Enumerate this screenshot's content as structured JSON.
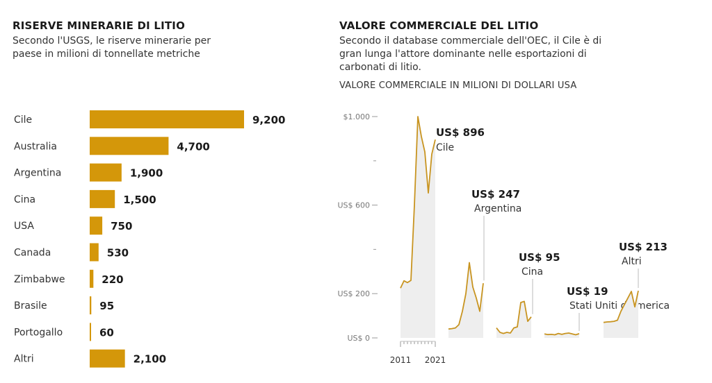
{
  "left": {
    "title": "RISERVE MINERARIE DI LITIO",
    "subtitle_line1": "Secondo l'USGS, le riserve minerarie per",
    "subtitle_line2": "paese in milioni di tonnellate metriche"
  },
  "right": {
    "title": "VALORE COMMERCIALE DEL LITIO",
    "subtitle_line1": "Secondo il database commerciale dell'OEC, il Cile è di",
    "subtitle_line2": "gran lunga l'attore dominante nelle esportazioni di",
    "subtitle_line3": "carbonati di litio.",
    "unit_label": "VALORE COMMERCIALE IN MILIONI DI DOLLARI USA"
  },
  "chart_data": [
    {
      "type": "bar",
      "orientation": "horizontal",
      "title": "RISERVE MINERARIE DI LITIO",
      "categories": [
        "Cile",
        "Australia",
        "Argentina",
        "Cina",
        "USA",
        "Canada",
        "Zimbabwe",
        "Brasile",
        "Portogallo",
        "Altri"
      ],
      "values": [
        9200,
        4700,
        1900,
        1500,
        750,
        530,
        220,
        95,
        60,
        2100
      ],
      "value_labels": [
        "9,200",
        "4,700",
        "1,900",
        "1,500",
        "750",
        "530",
        "220",
        "95",
        "60",
        "2,100"
      ],
      "xlim": [
        0,
        9200
      ],
      "color": "#d4970a"
    },
    {
      "type": "area",
      "layout": "small-multiples",
      "title": "VALORE COMMERCIALE DEL LITIO",
      "ylabel": "VALORE COMMERCIALE IN MILIONI DI DOLLARI USA",
      "ylim": [
        0,
        1000
      ],
      "y_ticks": [
        0,
        200,
        600,
        1000
      ],
      "y_tick_labels": [
        "US$ 0",
        "US$ 200",
        "US$ 600",
        "$1.000"
      ],
      "x_tick_labels": [
        "2011",
        "2021"
      ],
      "x": [
        2011,
        2012,
        2013,
        2014,
        2015,
        2016,
        2017,
        2018,
        2019,
        2020,
        2021
      ],
      "line_color": "#c89420",
      "fill_color": "#eeeeee",
      "series": [
        {
          "name": "Cile",
          "label": "US$ 896",
          "values": [
            225,
            258,
            250,
            260,
            600,
            1000,
            910,
            840,
            655,
            830,
            896
          ]
        },
        {
          "name": "Argentina",
          "label": "US$ 247",
          "values": [
            40,
            42,
            45,
            60,
            120,
            200,
            340,
            230,
            180,
            120,
            247
          ]
        },
        {
          "name": "Cina",
          "label": "US$ 95",
          "values": [
            45,
            25,
            20,
            25,
            22,
            45,
            50,
            160,
            165,
            75,
            95
          ]
        },
        {
          "name": "Stati Uniti d'America",
          "label": "US$ 19",
          "values": [
            18,
            15,
            16,
            14,
            20,
            16,
            20,
            22,
            18,
            14,
            19
          ]
        },
        {
          "name": "Altri",
          "label": "US$ 213",
          "values": [
            70,
            72,
            73,
            75,
            80,
            120,
            150,
            180,
            210,
            140,
            213
          ]
        }
      ]
    }
  ]
}
